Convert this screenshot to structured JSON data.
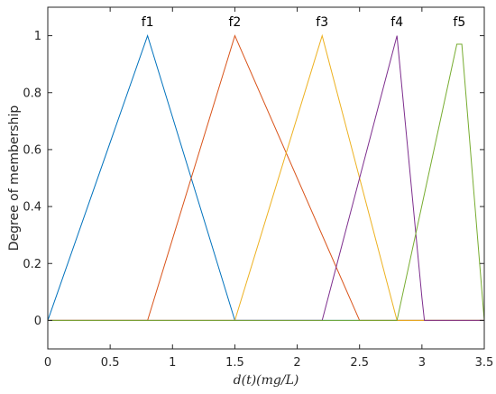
{
  "chart_data": {
    "type": "line",
    "title": "",
    "xlabel": "d(t)(mg/L)",
    "ylabel": "Degree of membership",
    "xlim": [
      0,
      3.5
    ],
    "ylim": [
      -0.1,
      1.1
    ],
    "xticks": [
      0,
      0.5,
      1,
      1.5,
      2,
      2.5,
      3,
      3.5
    ],
    "xtick_labels": [
      "0",
      "0.5",
      "1",
      "1.5",
      "2",
      "2.5",
      "3",
      "3.5"
    ],
    "yticks": [
      0,
      0.2,
      0.4,
      0.6,
      0.8,
      1
    ],
    "ytick_labels": [
      "0",
      "0.2",
      "0.4",
      "0.6",
      "0.8",
      "1"
    ],
    "grid": false,
    "series": [
      {
        "name": "f1",
        "color": "#0072BD",
        "x": [
          0,
          0.8,
          1.5,
          3.5
        ],
        "y": [
          0,
          1,
          0,
          0
        ]
      },
      {
        "name": "f2",
        "color": "#D95319",
        "x": [
          0,
          0.8,
          1.5,
          2.5,
          3.5
        ],
        "y": [
          0,
          0,
          1,
          0,
          0
        ]
      },
      {
        "name": "f3",
        "color": "#EDB120",
        "x": [
          0,
          1.5,
          2.2,
          2.8,
          3.5
        ],
        "y": [
          0,
          0,
          1,
          0,
          0
        ]
      },
      {
        "name": "f4",
        "color": "#7E2F8E",
        "x": [
          0,
          2.2,
          2.8,
          3.0,
          3.02,
          3.5
        ],
        "y": [
          0,
          0,
          1,
          0.08,
          0,
          0
        ]
      },
      {
        "name": "f5",
        "color": "#77AC30",
        "x": [
          0,
          2.8,
          3.28,
          3.32,
          3.5
        ],
        "y": [
          0,
          0,
          0.97,
          0.97,
          0
        ]
      }
    ],
    "annotations": [
      {
        "text": "f1",
        "x": 0.8,
        "y": 1.05
      },
      {
        "text": "f2",
        "x": 1.5,
        "y": 1.05
      },
      {
        "text": "f3",
        "x": 2.2,
        "y": 1.05
      },
      {
        "text": "f4",
        "x": 2.8,
        "y": 1.05
      },
      {
        "text": "f5",
        "x": 3.3,
        "y": 1.05
      }
    ]
  }
}
